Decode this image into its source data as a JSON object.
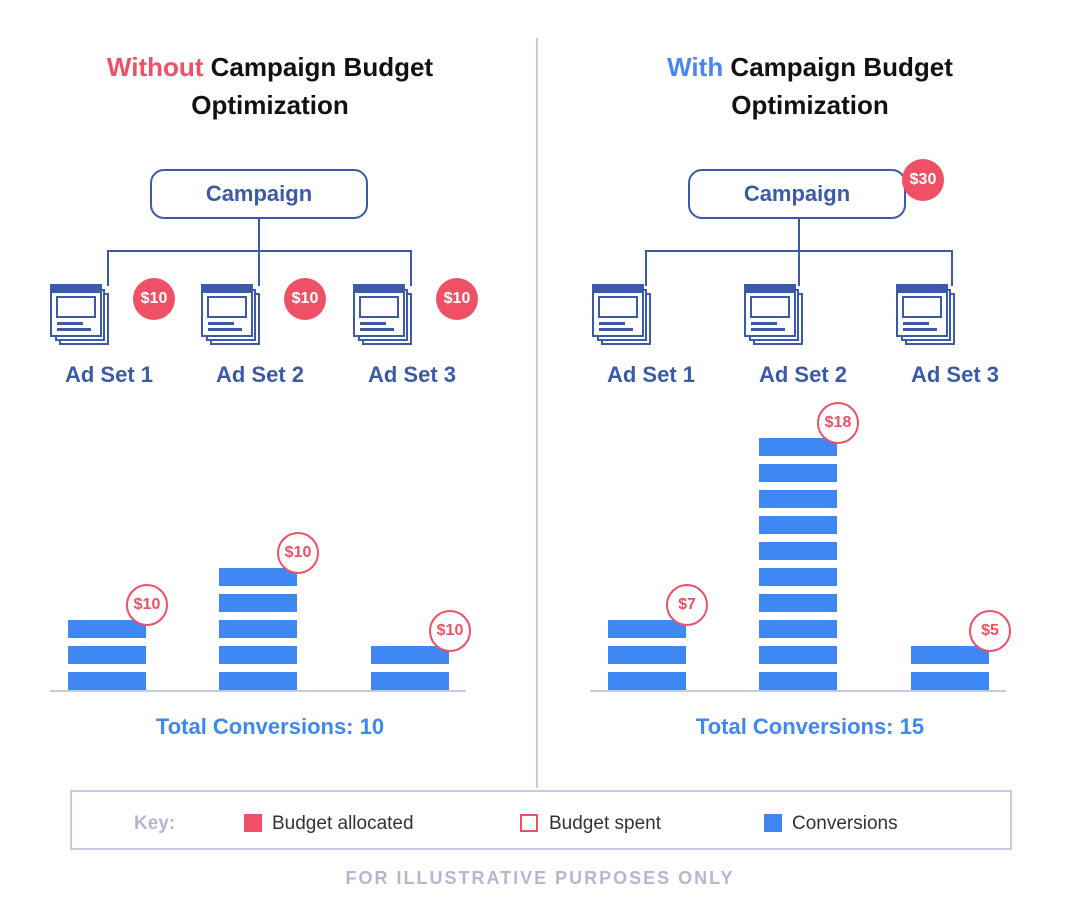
{
  "left": {
    "title_highlight": "Without",
    "title_rest": " Campaign Budget",
    "title_line2": "Optimization",
    "campaign_label": "Campaign",
    "ad_sets": [
      {
        "label": "Ad Set 1",
        "allocated": "$10",
        "spent": "$10",
        "conversions": 3
      },
      {
        "label": "Ad Set 2",
        "allocated": "$10",
        "spent": "$10",
        "conversions": 5
      },
      {
        "label": "Ad Set 3",
        "allocated": "$10",
        "spent": "$10",
        "conversions": 2
      }
    ],
    "total": "Total Conversions: 10"
  },
  "right": {
    "title_highlight": "With",
    "title_rest": " Campaign Budget",
    "title_line2": "Optimization",
    "campaign_label": "Campaign",
    "campaign_allocated": "$30",
    "ad_sets": [
      {
        "label": "Ad Set 1",
        "spent": "$7",
        "conversions": 3
      },
      {
        "label": "Ad Set 2",
        "spent": "$18",
        "conversions": 10
      },
      {
        "label": "Ad Set 3",
        "spent": "$5",
        "conversions": 2
      }
    ],
    "total": "Total Conversions: 15"
  },
  "key": {
    "label": "Key:",
    "budget_allocated": "Budget allocated",
    "budget_spent": "Budget spent",
    "conversions": "Conversions"
  },
  "footer": "FOR ILLUSTRATIVE PURPOSES ONLY",
  "colors": {
    "red": "#ee5066",
    "blue_accent": "#4a86f0",
    "navy": "#3b5aa8",
    "bar_blue": "#3f87f3"
  },
  "icons": [
    "ad-set-stack-icon"
  ]
}
